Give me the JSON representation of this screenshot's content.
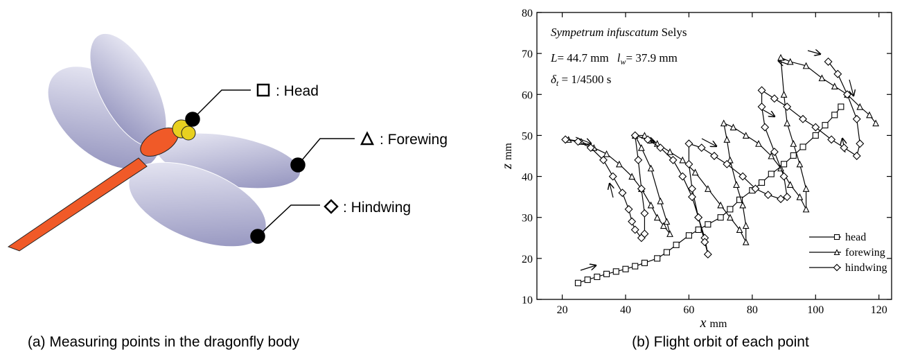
{
  "panel_a": {
    "caption": "(a) Measuring points in the dragonfly body",
    "labels": [
      ": Head",
      ": Forewing",
      ": Hindwing"
    ]
  },
  "chart_data": {
    "type": "line",
    "caption": "(b) Flight orbit of each point",
    "species": "Sympetrum infuscatum",
    "author": "Selys",
    "length_text": [
      "L",
      "= 44.7 mm",
      "l",
      "w",
      "= 37.9 mm"
    ],
    "time_text": [
      "δ",
      "t",
      " = 1/4500 s"
    ],
    "xlabel": [
      "x",
      "mm"
    ],
    "ylabel": [
      "z",
      "mm"
    ],
    "xlim": [
      12,
      124
    ],
    "ylim": [
      10,
      80
    ],
    "xticks": [
      20,
      40,
      60,
      80,
      100,
      120
    ],
    "yticks": [
      10,
      20,
      30,
      40,
      50,
      60,
      70,
      80
    ],
    "legend": "lower right",
    "series": [
      {
        "name": "head",
        "marker": "square",
        "color": "#000",
        "x": [
          25,
          28,
          31,
          34,
          37,
          40,
          43,
          46,
          50,
          53,
          56,
          60,
          63,
          66,
          70,
          73,
          76,
          80,
          83,
          86,
          90,
          93,
          96,
          100,
          103,
          106,
          108
        ],
        "values": [
          14,
          14.8,
          15.5,
          16.2,
          16.8,
          17.4,
          18.1,
          18.9,
          20,
          21.5,
          23.3,
          25.6,
          27,
          28.3,
          30,
          32,
          34.3,
          36.6,
          38.5,
          40.6,
          43,
          45.1,
          47.2,
          50,
          52.5,
          55,
          57
        ]
      },
      {
        "name": "forewing",
        "marker": "triangle",
        "color": "#000",
        "x": [
          22,
          26,
          30,
          34,
          38,
          42,
          45,
          48,
          50,
          52,
          54,
          53,
          51,
          48,
          45,
          43,
          46,
          50,
          54,
          58,
          62,
          66,
          70,
          73,
          76,
          78,
          78,
          77,
          75,
          73,
          72,
          71,
          74,
          78,
          82,
          86,
          89,
          92,
          95,
          97,
          97,
          95,
          93,
          91,
          90,
          89,
          92,
          97,
          102,
          106,
          110,
          114,
          117,
          119
        ],
        "values": [
          49,
          48.5,
          47,
          45.5,
          43,
          40,
          37,
          33,
          30,
          28,
          26,
          29,
          34,
          42,
          47,
          50,
          50,
          48,
          46,
          44,
          41,
          37,
          33,
          30,
          27,
          24,
          28,
          33,
          38,
          44,
          49,
          53,
          52,
          50,
          48,
          45,
          42,
          38,
          35,
          32,
          37,
          43,
          48,
          53,
          60,
          69,
          68,
          67,
          64,
          62,
          60,
          57,
          55,
          53
        ]
      },
      {
        "name": "hindwing",
        "marker": "diamond",
        "color": "#000",
        "x": [
          21,
          25,
          29,
          33,
          36,
          39,
          41,
          42,
          43,
          45,
          46,
          46,
          45,
          44,
          43,
          47,
          51,
          55,
          58,
          61,
          63,
          65,
          66,
          65,
          63,
          61,
          60,
          60,
          64,
          68,
          72,
          77,
          81,
          85,
          89,
          91,
          90,
          87,
          84,
          83,
          83,
          87,
          91,
          96,
          100,
          105,
          109,
          113,
          114,
          113,
          110,
          107,
          104
        ],
        "values": [
          49,
          48.5,
          47,
          44,
          40,
          36,
          32,
          29,
          27,
          25,
          26,
          31,
          37,
          44,
          50,
          49,
          47,
          44,
          40,
          35,
          30,
          25,
          21,
          24,
          30,
          37,
          43,
          48,
          47,
          45,
          43,
          40,
          37,
          35.5,
          34.5,
          35,
          40,
          46,
          52,
          57,
          61,
          59,
          57,
          54,
          52,
          49,
          47,
          45,
          48,
          54,
          60,
          65,
          68
        ]
      }
    ]
  }
}
